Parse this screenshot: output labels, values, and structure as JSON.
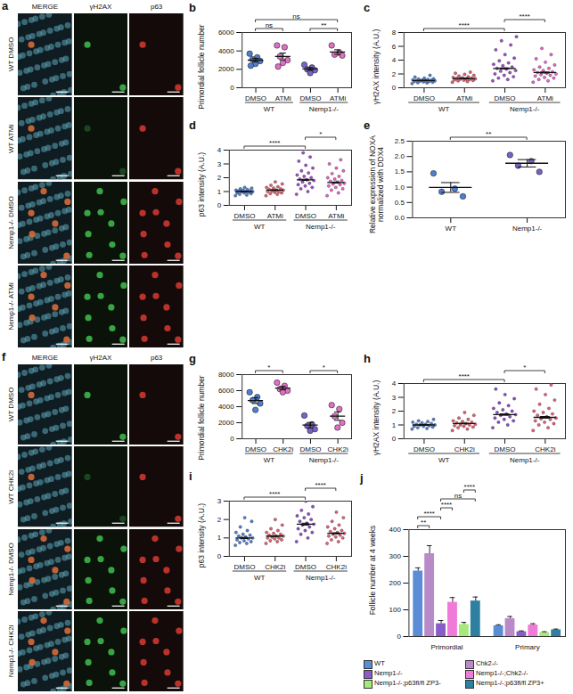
{
  "chart_data": [
    {
      "panel": "b",
      "type": "dotplot",
      "y_label": "Primordial follicle number",
      "categories": [
        "DMSO",
        "ATMi",
        "DMSO",
        "ATMi"
      ],
      "groups": [
        {
          "label": "WT",
          "from": 0,
          "to": 1
        },
        {
          "label": "Nemp1-/-",
          "from": 2,
          "to": 3
        }
      ],
      "values": [
        [
          3700,
          3300,
          3100,
          2900,
          2600,
          2400
        ],
        [
          4600,
          4400,
          3400,
          3000,
          2700,
          2300
        ],
        [
          2500,
          2200,
          2000,
          1900,
          1600
        ],
        [
          4600,
          3800,
          3600,
          3500
        ]
      ],
      "means": [
        3000,
        3400,
        2040,
        3875
      ],
      "sems": [
        200,
        370,
        150,
        250
      ],
      "colors": [
        "#4f7fd0",
        "#e06fc8",
        "#7a62c8",
        "#e06fc8"
      ],
      "ylim": [
        0,
        6000
      ],
      "yticks": [
        0,
        2000,
        4000,
        6000
      ],
      "annotations": [
        {
          "from": 0,
          "to": 1,
          "label": "ns"
        },
        {
          "from": 2,
          "to": 3,
          "label": "**"
        },
        {
          "from": 0,
          "to": 3,
          "label": "ns"
        }
      ]
    },
    {
      "panel": "c",
      "type": "dotplot",
      "y_label": "γH2AX intensity (A.U.)",
      "categories": [
        "DMSO",
        "ATMi",
        "DMSO",
        "ATMi"
      ],
      "groups": [
        {
          "label": "WT",
          "from": 0,
          "to": 1
        },
        {
          "label": "Nemp1-/-",
          "from": 2,
          "to": 3
        }
      ],
      "values": [
        [
          0.6,
          0.7,
          0.75,
          0.8,
          0.85,
          0.9,
          0.9,
          0.95,
          1.0,
          1.0,
          1.05,
          1.1,
          1.1,
          1.15,
          1.2,
          1.25,
          1.3,
          1.4,
          1.55,
          1.8
        ],
        [
          0.8,
          0.9,
          1.0,
          1.05,
          1.1,
          1.15,
          1.2,
          1.25,
          1.3,
          1.3,
          1.35,
          1.4,
          1.45,
          1.5,
          1.6,
          1.7,
          1.8,
          1.95,
          2.1,
          2.25
        ],
        [
          1.0,
          1.2,
          1.4,
          1.6,
          1.8,
          2.0,
          2.2,
          2.4,
          2.5,
          2.7,
          2.8,
          3.0,
          3.2,
          3.4,
          3.6,
          3.9,
          4.3,
          4.8,
          5.5,
          6.2,
          6.8,
          7.4
        ],
        [
          0.8,
          1.0,
          1.2,
          1.4,
          1.5,
          1.7,
          1.8,
          1.9,
          2.0,
          2.1,
          2.2,
          2.3,
          2.5,
          2.6,
          2.8,
          3.0,
          3.3,
          3.7,
          4.2,
          4.8,
          5.7
        ]
      ],
      "means": [
        1.05,
        1.35,
        2.8,
        2.2
      ],
      "sems": [
        0.03,
        0.03,
        0.08,
        0.07
      ],
      "colors": [
        "#4f7fd0",
        "#e0606e",
        "#a04cc4",
        "#e066c4"
      ],
      "ylim": [
        0,
        8
      ],
      "yticks": [
        0,
        2,
        4,
        6,
        8
      ],
      "annotations": [
        {
          "from": 0,
          "to": 2,
          "label": "****"
        },
        {
          "from": 2,
          "to": 3,
          "label": "****"
        }
      ]
    },
    {
      "panel": "d",
      "type": "dotplot",
      "y_label": "p63 intensity (A.U.)",
      "categories": [
        "DMSO",
        "ATMi",
        "DMSO",
        "ATMi"
      ],
      "groups": [
        {
          "label": "WT",
          "from": 0,
          "to": 1
        },
        {
          "label": "Nemp1-/-",
          "from": 2,
          "to": 3
        }
      ],
      "values": [
        [
          0.7,
          0.75,
          0.8,
          0.85,
          0.9,
          0.9,
          0.95,
          1.0,
          1.0,
          1.0,
          1.05,
          1.05,
          1.1,
          1.1,
          1.15,
          1.2,
          1.25,
          1.3
        ],
        [
          0.7,
          0.8,
          0.85,
          0.9,
          0.95,
          1.0,
          1.0,
          1.05,
          1.1,
          1.1,
          1.15,
          1.2,
          1.25,
          1.3,
          1.35,
          1.45,
          1.55,
          1.7
        ],
        [
          0.8,
          1.0,
          1.2,
          1.3,
          1.4,
          1.5,
          1.6,
          1.7,
          1.8,
          1.85,
          1.9,
          2.0,
          2.1,
          2.2,
          2.35,
          2.5,
          2.7,
          2.9,
          3.2,
          3.5,
          3.8
        ],
        [
          0.7,
          0.9,
          1.1,
          1.2,
          1.3,
          1.4,
          1.5,
          1.55,
          1.6,
          1.7,
          1.75,
          1.8,
          1.9,
          2.0,
          2.1,
          2.3,
          2.5,
          2.7,
          3.0,
          3.3
        ]
      ],
      "means": [
        1.0,
        1.1,
        1.85,
        1.65
      ],
      "sems": [
        0.01,
        0.02,
        0.04,
        0.04
      ],
      "colors": [
        "#4f7fd0",
        "#e0606e",
        "#a04cc4",
        "#e066c4"
      ],
      "ylim": [
        0,
        4
      ],
      "yticks": [
        0,
        1,
        2,
        3,
        4
      ],
      "annotations": [
        {
          "from": 0,
          "to": 2,
          "label": "****"
        },
        {
          "from": 2,
          "to": 3,
          "label": "*"
        }
      ]
    },
    {
      "panel": "e",
      "type": "dotplot",
      "y_label": "Relative expression of NOXA normalized with DDX4",
      "categories": [
        "WT",
        "Nemp1-/-"
      ],
      "values": [
        [
          1.45,
          0.95,
          0.85,
          0.7
        ],
        [
          2.05,
          1.85,
          1.7,
          1.5
        ]
      ],
      "means": [
        0.99,
        1.78
      ],
      "sems": [
        0.16,
        0.12
      ],
      "colors": [
        "#4f7fd0",
        "#7a62c8"
      ],
      "ylim": [
        0,
        2.5
      ],
      "yticks": [
        {
          "value": 0,
          "label": "0.0"
        },
        0.5,
        {
          "value": 1,
          "label": "1.0"
        },
        1.5,
        {
          "value": 2,
          "label": "2.0"
        },
        2.5
      ],
      "annotations": [
        {
          "from": 0,
          "to": 1,
          "label": "**"
        }
      ]
    },
    {
      "panel": "g",
      "type": "dotplot",
      "y_label": "Primordial follicle number",
      "categories": [
        "DMSO",
        "CHK2i",
        "DMSO",
        "CHK2i"
      ],
      "groups": [
        {
          "label": "WT",
          "from": 0,
          "to": 1
        },
        {
          "label": "Nemp1-/-",
          "from": 2,
          "to": 3
        }
      ],
      "values": [
        [
          5800,
          5200,
          4800,
          4400,
          3600
        ],
        [
          7000,
          6600,
          6200,
          6000,
          5800
        ],
        [
          2900,
          1800,
          1600,
          1200,
          1000
        ],
        [
          4200,
          3700,
          2800,
          2000,
          1400
        ]
      ],
      "means": [
        4760,
        6320,
        1700,
        2820
      ],
      "sems": [
        370,
        220,
        330,
        520
      ],
      "colors": [
        "#4f7fd0",
        "#e06fc8",
        "#7a62c8",
        "#e06fc8"
      ],
      "ylim": [
        0,
        8000
      ],
      "yticks": [
        0,
        2000,
        4000,
        6000,
        8000
      ],
      "annotations": [
        {
          "from": 0,
          "to": 1,
          "label": "*"
        },
        {
          "from": 2,
          "to": 3,
          "label": "*"
        }
      ]
    },
    {
      "panel": "h",
      "type": "dotplot",
      "y_label": "γH2AX intensity (A.U.)",
      "categories": [
        "DMSO",
        "CHK2i",
        "DMSO",
        "CHK2i"
      ],
      "groups": [
        {
          "label": "WT",
          "from": 0,
          "to": 1
        },
        {
          "label": "Nemp1-/-",
          "from": 2,
          "to": 3
        }
      ],
      "values": [
        [
          0.7,
          0.75,
          0.8,
          0.85,
          0.9,
          0.9,
          0.95,
          1.0,
          1.0,
          1.05,
          1.05,
          1.1,
          1.15,
          1.2,
          1.25,
          1.3,
          1.4
        ],
        [
          0.6,
          0.7,
          0.8,
          0.85,
          0.9,
          0.95,
          1.0,
          1.0,
          1.05,
          1.1,
          1.15,
          1.2,
          1.25,
          1.3,
          1.4,
          1.5,
          1.7,
          1.9
        ],
        [
          0.8,
          1.0,
          1.2,
          1.3,
          1.4,
          1.5,
          1.6,
          1.7,
          1.75,
          1.8,
          1.9,
          2.0,
          2.1,
          2.2,
          2.4,
          2.6,
          2.9,
          3.2,
          3.6
        ],
        [
          0.6,
          0.8,
          1.0,
          1.1,
          1.2,
          1.3,
          1.4,
          1.45,
          1.5,
          1.6,
          1.7,
          1.8,
          1.9,
          2.0,
          2.2,
          2.5,
          2.8,
          3.2,
          3.6,
          3.9
        ]
      ],
      "means": [
        1.0,
        1.1,
        1.75,
        1.55
      ],
      "sems": [
        0.02,
        0.02,
        0.05,
        0.06
      ],
      "colors": [
        "#4f7fd0",
        "#e0606e",
        "#8a4cc4",
        "#e0607a"
      ],
      "ylim": [
        0,
        4
      ],
      "yticks": [
        0,
        1,
        2,
        3,
        4
      ],
      "annotations": [
        {
          "from": 0,
          "to": 2,
          "label": "****"
        },
        {
          "from": 2,
          "to": 3,
          "label": "*"
        }
      ]
    },
    {
      "panel": "i",
      "type": "dotplot",
      "y_label": "p63 intensity (A.U.)",
      "categories": [
        "DMSO",
        "CHK2i",
        "DMSO",
        "CHK2i"
      ],
      "groups": [
        {
          "label": "WT",
          "from": 0,
          "to": 1
        },
        {
          "label": "Nemp1-/-",
          "from": 2,
          "to": 3
        }
      ],
      "values": [
        [
          0.6,
          0.7,
          0.75,
          0.8,
          0.85,
          0.9,
          0.95,
          1.0,
          1.0,
          1.05,
          1.1,
          1.15,
          1.2,
          1.3,
          1.4,
          1.6,
          1.9,
          2.1
        ],
        [
          0.7,
          0.8,
          0.85,
          0.9,
          0.95,
          1.0,
          1.0,
          1.05,
          1.1,
          1.1,
          1.15,
          1.2,
          1.25,
          1.3,
          1.4,
          1.5,
          1.7,
          2.0
        ],
        [
          0.8,
          1.0,
          1.2,
          1.3,
          1.4,
          1.5,
          1.6,
          1.7,
          1.75,
          1.8,
          1.9,
          2.0,
          2.1,
          2.2,
          2.3,
          2.5,
          2.7,
          3.0
        ],
        [
          0.7,
          0.8,
          0.9,
          1.0,
          1.05,
          1.1,
          1.15,
          1.2,
          1.25,
          1.3,
          1.35,
          1.4,
          1.5,
          1.6,
          1.7,
          1.9,
          2.1,
          2.4
        ]
      ],
      "means": [
        1.0,
        1.1,
        1.75,
        1.25
      ],
      "sems": [
        0.03,
        0.02,
        0.05,
        0.03
      ],
      "colors": [
        "#4f7fd0",
        "#e0606e",
        "#8a4cc4",
        "#e0607a"
      ],
      "ylim": [
        0,
        3
      ],
      "yticks": [
        0,
        1,
        2,
        3
      ],
      "annotations": [
        {
          "from": 0,
          "to": 2,
          "label": "****"
        },
        {
          "from": 2,
          "to": 3,
          "label": "****"
        }
      ]
    },
    {
      "panel": "j",
      "type": "bar",
      "y_label": "Follicle number at 4 weeks",
      "categories": [
        "Primordial",
        "Primary"
      ],
      "series": [
        {
          "name": "WT",
          "color": "#5b8dd6",
          "values": [
            245,
            40
          ],
          "errors": [
            12,
            4
          ]
        },
        {
          "name": "Chk2-/-",
          "color": "#b98ac8",
          "values": [
            310,
            67
          ],
          "errors": [
            30,
            8
          ]
        },
        {
          "name": "Nemp1-/-",
          "color": "#8a5cc8",
          "values": [
            48,
            18
          ],
          "errors": [
            12,
            3
          ]
        },
        {
          "name": "Nemp1-/-;Chk2-/-",
          "color": "#f07ad8",
          "values": [
            128,
            43
          ],
          "errors": [
            18,
            5
          ]
        },
        {
          "name": "Nemp1-/-;p63fl/fl ZP3-",
          "color": "#a6e87a",
          "values": [
            45,
            15
          ],
          "errors": [
            8,
            3
          ]
        },
        {
          "name": "Nemp1-/-;p63fl/fl ZP3+",
          "color": "#2e7fa0",
          "values": [
            133,
            25
          ],
          "errors": [
            15,
            3
          ]
        }
      ],
      "ylim": [
        0,
        400
      ],
      "yticks": [
        0,
        100,
        200,
        300,
        400
      ],
      "legend": "bottom",
      "annotations": [
        {
          "category": 0,
          "from": 0,
          "to": 1,
          "label": "**"
        },
        {
          "category": 0,
          "from": 0,
          "to": 2,
          "label": "****"
        },
        {
          "category": 0,
          "from": 2,
          "to": 3,
          "label": "****"
        },
        {
          "category": 0,
          "from": 2,
          "to": 5,
          "label": "ns"
        },
        {
          "category": 0,
          "from": 4,
          "to": 5,
          "label": "****"
        }
      ]
    }
  ],
  "image_panels": [
    {
      "panel": "a",
      "columns": [
        "MERGE",
        "γH2AX",
        "p63"
      ],
      "rows": [
        "WT DMSO",
        "WT ATMi",
        "Nemp1-/- DMSO",
        "Nemp1-/- ATMi"
      ]
    },
    {
      "panel": "f",
      "columns": [
        "MERGE",
        "γH2AX",
        "p63"
      ],
      "rows": [
        "WT DMSO",
        "WT CHK2i",
        "Nemp1-/- DMSO",
        "Nemp1-/- CHK2i"
      ]
    }
  ]
}
